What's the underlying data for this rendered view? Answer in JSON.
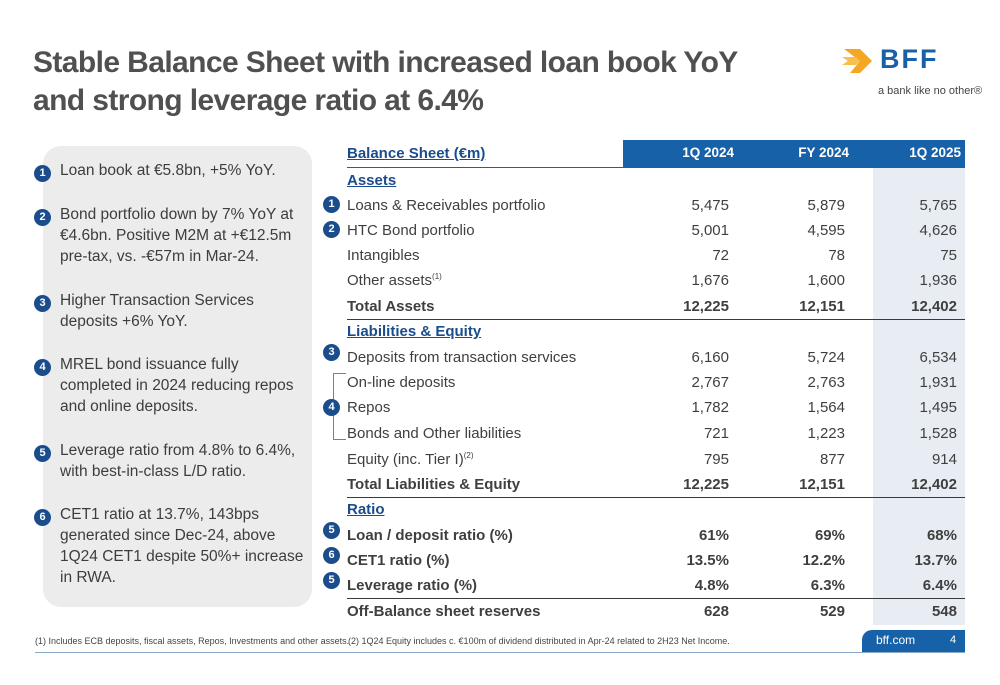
{
  "title": {
    "line1": "Stable Balance Sheet with increased loan book YoY",
    "line2": "and strong leverage ratio at 6.4%"
  },
  "logo": {
    "text": "BFF",
    "tagline": "a bank like no other®"
  },
  "brand_colors": {
    "primary": "#1761a8",
    "dark": "#1b4d8c",
    "highlight_column": "#e8edf3",
    "panel": "#ececec"
  },
  "bullets": [
    {
      "n": "1",
      "text": "Loan book at €5.8bn, +5% YoY."
    },
    {
      "n": "2",
      "text": "Bond portfolio down by 7% YoY at €4.6bn. Positive M2M at +€12.5m pre-tax, vs. -€57m in Mar-24."
    },
    {
      "n": "3",
      "text": "Higher Transaction Services deposits +6% YoY."
    },
    {
      "n": "4",
      "text": "MREL bond issuance fully completed in 2024 reducing repos and online deposits."
    },
    {
      "n": "5",
      "text": "Leverage ratio from 4.8% to 6.4%, with best-in-class L/D ratio."
    },
    {
      "n": "6",
      "text": "CET1 ratio at 13.7%, 143bps generated since Dec-24, above 1Q24 CET1 despite 50%+ increase in RWA."
    }
  ],
  "table": {
    "header": {
      "label": "Balance Sheet (€m)",
      "col1": "1Q 2024",
      "col2": "FY 2024",
      "col3": "1Q 2025"
    },
    "assets_title": "Assets",
    "assets": [
      {
        "badge": "1",
        "label": "Loans & Receivables portfolio",
        "v1": "5,475",
        "v2": "5,879",
        "v3": "5,765"
      },
      {
        "badge": "2",
        "label": "HTC Bond portfolio",
        "v1": "5,001",
        "v2": "4,595",
        "v3": "4,626"
      },
      {
        "badge": "",
        "label": "Intangibles",
        "v1": "72",
        "v2": "78",
        "v3": "75"
      },
      {
        "badge": "",
        "label": "Other assets",
        "sup": "(1)",
        "v1": "1,676",
        "v2": "1,600",
        "v3": "1,936"
      }
    ],
    "total_assets": {
      "label": "Total Assets",
      "v1": "12,225",
      "v2": "12,151",
      "v3": "12,402"
    },
    "liab_title": "Liabilities & Equity",
    "liabilities": [
      {
        "badge": "3",
        "label": "Deposits from transaction services",
        "v1": "6,160",
        "v2": "5,724",
        "v3": "6,534"
      },
      {
        "badge": "",
        "label": "On-line deposits",
        "v1": "2,767",
        "v2": "2,763",
        "v3": "1,931"
      },
      {
        "badge": "4",
        "label": "Repos",
        "v1": "1,782",
        "v2": "1,564",
        "v3": "1,495"
      },
      {
        "badge": "",
        "label": "Bonds and Other liabilities",
        "v1": "721",
        "v2": "1,223",
        "v3": "1,528"
      },
      {
        "badge": "",
        "label": "Equity (inc. Tier I)",
        "sup": "(2)",
        "v1": "795",
        "v2": "877",
        "v3": "914"
      }
    ],
    "total_liab": {
      "label": "Total Liabilities & Equity",
      "v1": "12,225",
      "v2": "12,151",
      "v3": "12,402"
    },
    "ratio_title": "Ratio",
    "ratios": [
      {
        "badge": "5",
        "label": "Loan / deposit ratio (%)",
        "v1": "61%",
        "v2": "69%",
        "v3": "68%"
      },
      {
        "badge": "6",
        "label": "CET1 ratio (%)",
        "v1": "13.5%",
        "v2": "12.2%",
        "v3": "13.7%"
      },
      {
        "badge": "5",
        "label": "Leverage ratio (%)",
        "v1": "4.8%",
        "v2": "6.3%",
        "v3": "6.4%"
      }
    ],
    "off_balance": {
      "label": "Off-Balance sheet reserves",
      "v1": "628",
      "v2": "529",
      "v3": "548"
    }
  },
  "footer": {
    "note1": "(1) Includes ECB deposits, fiscal assets, Repos, Investments and other assets.",
    "note2": "(2) 1Q24 Equity includes c. €100m of dividend distributed in Apr-24 related to 2H23 Net Income.",
    "url": "bff.com",
    "page": "4"
  }
}
